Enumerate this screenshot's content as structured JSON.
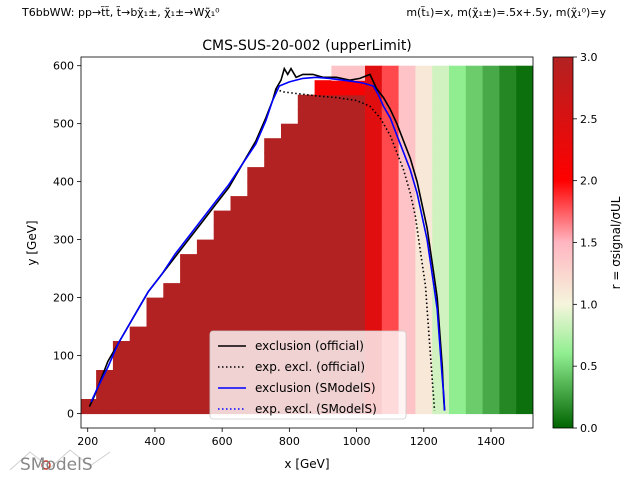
{
  "header": {
    "left": "T6bbWW: pp→t̃t̃, t̃→bχ̃₁±, χ̃₁±→Wχ̃₁⁰",
    "right": "m(t̃₁)=x, m(χ̃₁±)=.5x+.5y, m(χ̃₁⁰)=y"
  },
  "logo": {
    "text": "SModelS"
  },
  "colors": {
    "min": "#006400",
    "light_green": "#90ee90",
    "mid": "#f5f5dc",
    "light_red": "#ffb6c1",
    "red": "#ff0000",
    "max": "#b22222",
    "official": "#000000",
    "smodels": "#0000ff"
  },
  "chart_data": {
    "type": "heatmap",
    "title": "CMS-SUS-20-002 (upperLimit)",
    "xlabel": "x [GeV]",
    "ylabel": "y [GeV]",
    "colorbar_label": "r = σsignal/σUL",
    "xlim": [
      180,
      1525
    ],
    "ylim": [
      -25,
      615
    ],
    "x_ticks": [
      200,
      400,
      600,
      800,
      1000,
      1200,
      1400
    ],
    "y_ticks": [
      0,
      100,
      200,
      300,
      400,
      500,
      600
    ],
    "clim": [
      0,
      3
    ],
    "colorbar_ticks": [
      "0.0",
      "0.5",
      "1.0",
      "1.5",
      "2.0",
      "2.5",
      "3.0"
    ],
    "grid": false,
    "legend_position": "lower-center",
    "legend": [
      {
        "label": "exclusion (official)",
        "style": "solid",
        "color": "official"
      },
      {
        "label": "exp. excl. (official)",
        "style": "dotted",
        "color": "official"
      },
      {
        "label": "exclusion (SModelS)",
        "style": "solid",
        "color": "smodels"
      },
      {
        "label": "exp. excl. (SModelS)",
        "style": "dotted",
        "color": "smodels"
      }
    ],
    "cell_size": [
      50,
      25
    ],
    "r_profile": [
      {
        "x_max": 1040,
        "r": 3.0
      },
      {
        "x_max": 1090,
        "r": 2.4
      },
      {
        "x_max": 1140,
        "r": 1.8
      },
      {
        "x_max": 1190,
        "r": 1.4
      },
      {
        "x_max": 1240,
        "r": 1.1
      },
      {
        "x_max": 1290,
        "r": 0.85
      },
      {
        "x_max": 1340,
        "r": 0.6
      },
      {
        "x_max": 1390,
        "r": 0.45
      },
      {
        "x_max": 1440,
        "r": 0.3
      },
      {
        "x_max": 1490,
        "r": 0.15
      },
      {
        "x_max": 1560,
        "r": 0.05
      }
    ],
    "upper_region_r": [
      2.1,
      1.4,
      0.8
    ],
    "lines": {
      "exclusion_official": [
        [
          205,
          12
        ],
        [
          220,
          30
        ],
        [
          240,
          60
        ],
        [
          260,
          90
        ],
        [
          290,
          120
        ],
        [
          320,
          150
        ],
        [
          350,
          180
        ],
        [
          380,
          210
        ],
        [
          420,
          240
        ],
        [
          460,
          270
        ],
        [
          500,
          300
        ],
        [
          540,
          330
        ],
        [
          580,
          360
        ],
        [
          620,
          390
        ],
        [
          660,
          430
        ],
        [
          700,
          470
        ],
        [
          730,
          510
        ],
        [
          750,
          540
        ],
        [
          760,
          560
        ],
        [
          775,
          575
        ],
        [
          785,
          595
        ],
        [
          795,
          585
        ],
        [
          805,
          595
        ],
        [
          820,
          580
        ],
        [
          840,
          585
        ],
        [
          870,
          585
        ],
        [
          900,
          580
        ],
        [
          940,
          580
        ],
        [
          980,
          575
        ],
        [
          1010,
          578
        ],
        [
          1040,
          585
        ],
        [
          1060,
          560
        ],
        [
          1080,
          545
        ],
        [
          1100,
          525
        ],
        [
          1120,
          500
        ],
        [
          1140,
          470
        ],
        [
          1160,
          440
        ],
        [
          1180,
          400
        ],
        [
          1195,
          360
        ],
        [
          1210,
          320
        ],
        [
          1220,
          280
        ],
        [
          1230,
          240
        ],
        [
          1240,
          200
        ],
        [
          1245,
          160
        ],
        [
          1250,
          120
        ],
        [
          1255,
          80
        ],
        [
          1258,
          40
        ],
        [
          1260,
          20
        ],
        [
          1262,
          5
        ]
      ],
      "expected_official": [
        [
          760,
          560
        ],
        [
          780,
          555
        ],
        [
          820,
          552
        ],
        [
          880,
          548
        ],
        [
          940,
          545
        ],
        [
          1000,
          540
        ],
        [
          1040,
          530
        ],
        [
          1070,
          510
        ],
        [
          1100,
          480
        ],
        [
          1120,
          450
        ],
        [
          1140,
          420
        ],
        [
          1160,
          380
        ],
        [
          1175,
          340
        ],
        [
          1185,
          300
        ],
        [
          1195,
          260
        ],
        [
          1205,
          220
        ],
        [
          1210,
          180
        ],
        [
          1215,
          140
        ],
        [
          1220,
          100
        ],
        [
          1225,
          60
        ],
        [
          1230,
          20
        ],
        [
          1232,
          5
        ]
      ],
      "exclusion_smodels": [
        [
          210,
          20
        ],
        [
          230,
          45
        ],
        [
          260,
          80
        ],
        [
          290,
          120
        ],
        [
          320,
          150
        ],
        [
          350,
          180
        ],
        [
          380,
          210
        ],
        [
          420,
          240
        ],
        [
          460,
          275
        ],
        [
          500,
          305
        ],
        [
          540,
          335
        ],
        [
          580,
          365
        ],
        [
          620,
          395
        ],
        [
          660,
          430
        ],
        [
          700,
          465
        ],
        [
          730,
          505
        ],
        [
          750,
          540
        ],
        [
          770,
          565
        ],
        [
          800,
          572
        ],
        [
          840,
          578
        ],
        [
          880,
          580
        ],
        [
          920,
          578
        ],
        [
          960,
          575
        ],
        [
          1000,
          572
        ],
        [
          1020,
          570
        ],
        [
          1050,
          565
        ],
        [
          1065,
          550
        ],
        [
          1080,
          530
        ],
        [
          1100,
          510
        ],
        [
          1120,
          480
        ],
        [
          1140,
          450
        ],
        [
          1160,
          420
        ],
        [
          1180,
          380
        ],
        [
          1195,
          340
        ],
        [
          1210,
          300
        ],
        [
          1220,
          260
        ],
        [
          1230,
          220
        ],
        [
          1240,
          180
        ],
        [
          1245,
          140
        ],
        [
          1250,
          100
        ],
        [
          1255,
          60
        ],
        [
          1260,
          30
        ],
        [
          1262,
          5
        ]
      ]
    }
  }
}
